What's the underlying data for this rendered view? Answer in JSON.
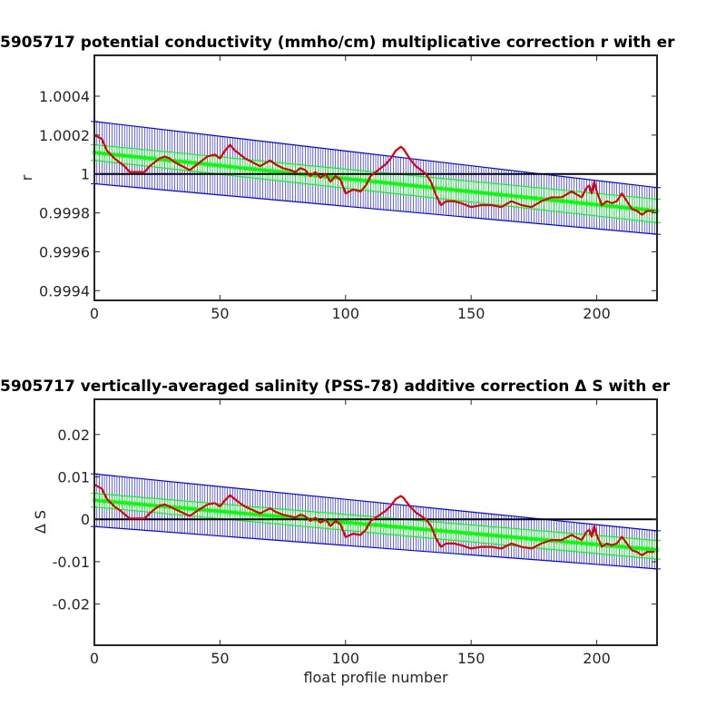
{
  "chart_data": [
    {
      "type": "line",
      "title": "5905717 potential conductivity (mmho/cm) multiplicative correction r with er",
      "xlabel": "",
      "ylabel": "r",
      "xlim": [
        0,
        224
      ],
      "ylim": [
        0.99935,
        1.00061
      ],
      "x_ticks": [
        0,
        50,
        100,
        150,
        200
      ],
      "x_tick_labels": [
        "0",
        "50",
        "100",
        "150",
        "200"
      ],
      "y_ticks": [
        0.9994,
        0.9996,
        0.9998,
        1.0,
        1.0002,
        1.0004
      ],
      "y_tick_labels": [
        "0.9994",
        "0.9996",
        "0.9998",
        "1",
        "1.0002",
        "1.0004"
      ],
      "grid": false,
      "reference_line": {
        "y": 1.0,
        "color": "#000000"
      },
      "series": [
        {
          "role": "fit_error_band",
          "color": "#0000ff",
          "center_x": [
            0,
            224
          ],
          "center_y": [
            1.00011,
            0.99981
          ],
          "half_width_start": 0.00016,
          "half_width_end": 0.00012
        },
        {
          "role": "fit_error_band_inner",
          "color": "#00ff00",
          "center_x": [
            0,
            224
          ],
          "center_y": [
            1.00011,
            0.99981
          ],
          "half_width_start": 4e-05,
          "half_width_end": 6e-05
        },
        {
          "role": "fit_line",
          "color": "#00ff00",
          "x": [
            0,
            224
          ],
          "y": [
            1.00011,
            0.99981
          ]
        },
        {
          "role": "correction",
          "color": "#e00000",
          "x": [
            0,
            3,
            5,
            8,
            10,
            12,
            14,
            16,
            18,
            20,
            22,
            24,
            26,
            28,
            30,
            32,
            35,
            38,
            40,
            42,
            45,
            48,
            50,
            52,
            54,
            56,
            58,
            60,
            63,
            66,
            70,
            72,
            75,
            78,
            80,
            82,
            84,
            86,
            88,
            90,
            92,
            94,
            96,
            98,
            100,
            103,
            106,
            108,
            110,
            112,
            114,
            116,
            118,
            120,
            122,
            123,
            124,
            126,
            128,
            130,
            132,
            134,
            136,
            138,
            140,
            143,
            146,
            150,
            154,
            158,
            162,
            166,
            170,
            174,
            178,
            182,
            186,
            190,
            194,
            196,
            197,
            198,
            199,
            200,
            202,
            204,
            206,
            208,
            210,
            212,
            214,
            216,
            218,
            220,
            222,
            223
          ],
          "y": [
            1.0002,
            1.00018,
            1.00012,
            1.00008,
            1.00006,
            1.00004,
            1.00001,
            1.00001,
            1.00001,
            1.00001,
            1.00004,
            1.00006,
            1.00008,
            1.00009,
            1.00008,
            1.00006,
            1.00004,
            1.00002,
            1.00004,
            1.00006,
            1.00009,
            1.0001,
            1.00008,
            1.00012,
            1.00015,
            1.00012,
            1.0001,
            1.00008,
            1.00006,
            1.00004,
            1.00007,
            1.00005,
            1.00003,
            1.00002,
            1.00001,
            1.00003,
            1.00002,
            0.99999,
            1.00001,
            0.99998,
            1.0,
            0.99996,
            0.99999,
            0.99997,
            0.9999,
            0.99992,
            0.99991,
            0.99994,
            0.99999,
            1.00001,
            1.00003,
            1.00005,
            1.00008,
            1.00012,
            1.00014,
            1.00013,
            1.00011,
            1.00007,
            1.00004,
            1.00002,
            1.0,
            0.99996,
            0.99989,
            0.99984,
            0.99986,
            0.99986,
            0.99985,
            0.99983,
            0.99984,
            0.99984,
            0.99983,
            0.99986,
            0.99984,
            0.99983,
            0.99986,
            0.99988,
            0.99988,
            0.99991,
            0.99988,
            0.99993,
            0.99994,
            0.9999,
            0.99996,
            0.99991,
            0.99984,
            0.99986,
            0.99985,
            0.99986,
            0.9999,
            0.99986,
            0.99982,
            0.99981,
            0.99979,
            0.99981,
            0.99981,
            0.99981
          ]
        }
      ]
    },
    {
      "type": "line",
      "title": "5905717 vertically-averaged salinity (PSS-78) additive correction Δ S with er",
      "xlabel": "float profile number",
      "ylabel": "Δ S",
      "xlim": [
        0,
        224
      ],
      "ylim": [
        -0.0297,
        0.0283
      ],
      "x_ticks": [
        0,
        50,
        100,
        150,
        200
      ],
      "x_tick_labels": [
        "0",
        "50",
        "100",
        "150",
        "200"
      ],
      "y_ticks": [
        -0.02,
        -0.01,
        0.0,
        0.01,
        0.02
      ],
      "y_tick_labels": [
        "-0.02",
        "-0.01",
        "0",
        "0.01",
        "0.02"
      ],
      "grid": false,
      "reference_line": {
        "y": 0.0,
        "color": "#000000"
      },
      "series": [
        {
          "role": "fit_error_band",
          "color": "#0000ff",
          "center_x": [
            0,
            224
          ],
          "center_y": [
            0.0045,
            -0.0072
          ],
          "half_width_start": 0.0062,
          "half_width_end": 0.0045
        },
        {
          "role": "fit_error_band_inner",
          "color": "#00ff00",
          "center_x": [
            0,
            224
          ],
          "center_y": [
            0.0045,
            -0.0072
          ],
          "half_width_start": 0.0016,
          "half_width_end": 0.0022
        },
        {
          "role": "fit_line",
          "color": "#00ff00",
          "x": [
            0,
            224
          ],
          "y": [
            0.0045,
            -0.0072
          ]
        },
        {
          "role": "correction",
          "color": "#e00000",
          "x": [
            0,
            3,
            5,
            8,
            10,
            12,
            14,
            16,
            18,
            20,
            22,
            24,
            26,
            28,
            30,
            32,
            35,
            38,
            40,
            42,
            45,
            48,
            50,
            52,
            54,
            56,
            58,
            60,
            63,
            66,
            70,
            72,
            75,
            78,
            80,
            82,
            84,
            86,
            88,
            90,
            92,
            94,
            96,
            98,
            100,
            103,
            106,
            108,
            110,
            112,
            114,
            116,
            118,
            120,
            122,
            123,
            124,
            126,
            128,
            130,
            132,
            134,
            136,
            138,
            140,
            143,
            146,
            150,
            154,
            158,
            162,
            166,
            170,
            174,
            178,
            182,
            186,
            190,
            194,
            196,
            197,
            198,
            199,
            200,
            202,
            204,
            206,
            208,
            210,
            212,
            214,
            216,
            218,
            220,
            222,
            223
          ],
          "y": [
            0.0082,
            0.0072,
            0.0048,
            0.003,
            0.0022,
            0.0012,
            0.0002,
            0.0002,
            0.0002,
            0.0002,
            0.0014,
            0.0024,
            0.0032,
            0.0035,
            0.003,
            0.0024,
            0.0016,
            0.0008,
            0.0016,
            0.0024,
            0.0035,
            0.0038,
            0.003,
            0.0045,
            0.0057,
            0.0047,
            0.0038,
            0.003,
            0.0022,
            0.0014,
            0.0026,
            0.0018,
            0.0011,
            0.0007,
            0.0004,
            0.0011,
            0.0007,
            -0.0004,
            0.0004,
            -0.0008,
            0.0,
            -0.0016,
            -0.0004,
            -0.0012,
            -0.0042,
            -0.0034,
            -0.0037,
            -0.0025,
            -0.0004,
            0.0004,
            0.0012,
            0.002,
            0.0032,
            0.0048,
            0.0055,
            0.0051,
            0.0043,
            0.0028,
            0.0016,
            0.0008,
            0.0,
            -0.0016,
            -0.0045,
            -0.0065,
            -0.0057,
            -0.0057,
            -0.0061,
            -0.0069,
            -0.0065,
            -0.0065,
            -0.0069,
            -0.0057,
            -0.0065,
            -0.0069,
            -0.0057,
            -0.0049,
            -0.0049,
            -0.0037,
            -0.0049,
            -0.0029,
            -0.0025,
            -0.0041,
            -0.0016,
            -0.0037,
            -0.0065,
            -0.0057,
            -0.0061,
            -0.0057,
            -0.0041,
            -0.0057,
            -0.0073,
            -0.0077,
            -0.0085,
            -0.0077,
            -0.0077,
            -0.0077
          ]
        }
      ]
    }
  ]
}
